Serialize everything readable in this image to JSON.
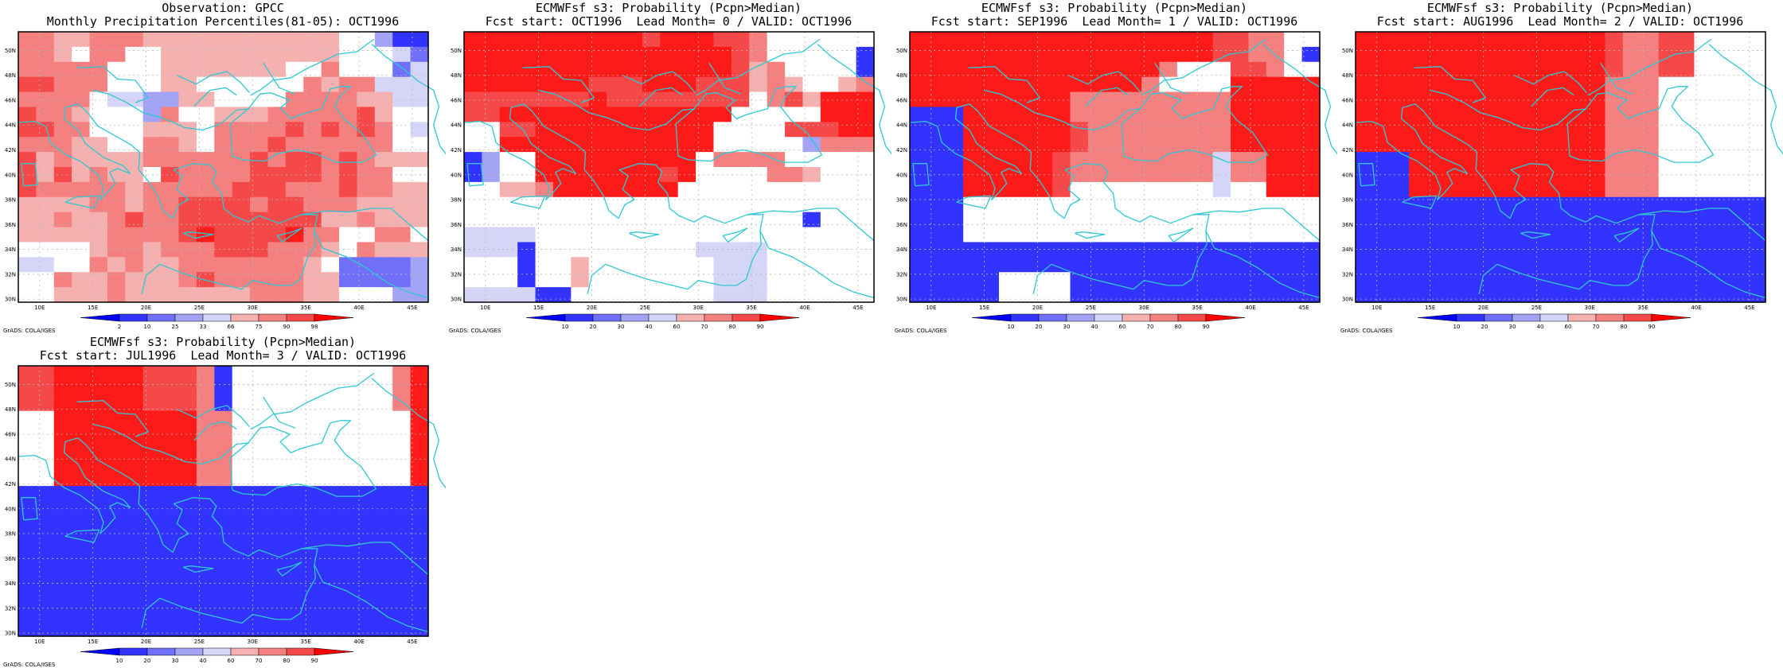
{
  "map": {
    "lat_labels": [
      "50N",
      "48N",
      "46N",
      "44N",
      "42N",
      "40N",
      "38N",
      "36N",
      "34N",
      "32N",
      "30N"
    ],
    "lon_labels": [
      "10E",
      "15E",
      "20E",
      "25E",
      "30E",
      "35E",
      "40E",
      "45E"
    ]
  },
  "colors": {
    "coast": "#2ec8d2",
    "frame": "#000000",
    "grid": "#b8b8b8",
    "levels": [
      "#0000ff",
      "#3333ff",
      "#6f6ff8",
      "#a3a3f5",
      "#d5d5f8",
      "#ffffff",
      "#f5b0b0",
      "#f58080",
      "#f54848",
      "#ff1a1a",
      "#ff0000"
    ]
  },
  "footer": "GrADS: COLA/IGES",
  "panels": [
    {
      "title1": "Observation: GPCC",
      "title2": "Monthly Precipitation Percentiles(81-05): OCT1996",
      "colorbar_labels": [
        "2",
        "10",
        "25",
        "33",
        "66",
        "75",
        "90",
        "98"
      ],
      "grid": [
        "77667776666666666655311",
        "77657755666666666655542",
        "77777555666666655755524",
        "88777555665555557677444",
        "77775443366555577776644",
        "87765553755666777778655",
        "88775556665777787878754",
        "77766557765777877777755",
        "86766667777778788787666",
        "86867665877778888787755",
        "87777767777788877787766",
        "66667767788887887776666",
        "66766787788888888667666",
        "66666777789888897755775",
        "55556776777888777657666",
        "44557676677777776522223",
        "55766766678777776622223",
        "55666766666667776655533"
      ]
    },
    {
      "title1": "ECMWFsf s3: Probability (Pcpn>Median)",
      "title2": "Fcst start: OCT1996  Lead Month= 0 / VALID: OCT1996",
      "colorbar_labels": [
        "10",
        "20",
        "30",
        "40",
        "60",
        "70",
        "80",
        "90"
      ],
      "grid": [
        "99999999998999887555555",
        "99999999999999987555551",
        "99999999999999986755551",
        "99999998889998886765567",
        "88888889888888885786999",
        "88999999999999955555999",
        "55889999999999555588899",
        "55999999999999555553777",
        "13559999999995777755555",
        "13559999999895555776555",
        "55667999999955555555555",
        "55555555555555555555555",
        "55555555555555555551555",
        "44445555555555555555555",
        "44415555555554444555555",
        "55515565555555444555555",
        "55515565555555444555555",
        "44441155555555444555555"
      ]
    },
    {
      "title1": "ECMWFsf s3: Probability (Pcpn>Median)",
      "title2": "Fcst start: SEP1996  Lead Month= 1 / VALID: OCT1996",
      "colorbar_labels": [
        "10",
        "20",
        "30",
        "40",
        "60",
        "70",
        "80",
        "90"
      ],
      "grid": [
        "99999999999999999887755",
        "99999999999999999887751",
        "99999999999999755588755",
        "99999999999997555599999",
        "99999999977777777799999",
        "11199999977777777799999",
        "11199999987777777799999",
        "11199999987777777799999",
        "11199999877777777477999",
        "11199999877777777477999",
        "11199999855555555455999",
        "11155555555555555555555",
        "11155555555555555555555",
        "11155555555555555555555",
        "11111111111111111111111",
        "11111111111111111111111",
        "11111555511111111111111",
        "11111555511111111111111"
      ]
    },
    {
      "title1": "ECMWFsf s3: Probability (Pcpn>Median)",
      "title2": "Fcst start: AUG1996  Lead Month= 2 / VALID: OCT1996",
      "colorbar_labels": [
        "10",
        "20",
        "30",
        "40",
        "60",
        "70",
        "80",
        "90"
      ],
      "grid": [
        "99999999999999877885555",
        "99999999999999877885555",
        "99999999999999877885555",
        "99999999999999777555555",
        "99999999999999777555555",
        "99999999999999777555555",
        "99999999999999777555555",
        "99999999999999777555555",
        "11199999999999777555555",
        "11199999999999777555555",
        "11199999999999777555555",
        "11111111111111111111111",
        "11111111111111111111111",
        "11111111111111111111111",
        "11111111111111111111111",
        "11111111111111111111111",
        "11111111111111111111111",
        "11111111111111111111111"
      ]
    },
    {
      "title1": "ECMWFsf s3: Probability (Pcpn>Median)",
      "title2": "Fcst start: JUL1996  Lead Month= 3 / VALID: OCT1996",
      "colorbar_labels": [
        "10",
        "20",
        "30",
        "40",
        "60",
        "70",
        "80",
        "90"
      ],
      "grid": [
        "88999998887155555555579",
        "88999998887155555555579",
        "88999998887155555555579",
        "55999999997755555555559",
        "55999999997755555555559",
        "55999999997755555555559",
        "55999999997755555555559",
        "55999999997755555555559",
        "11111111111111111111111",
        "11111111111111111111111",
        "11111111111111111111111",
        "11111111111111111111111",
        "11111111111111111111111",
        "11111111111111111111111",
        "11111111111111111111111",
        "11111111111111111111111",
        "11111111111111111111111",
        "11111111111111111111111"
      ]
    }
  ]
}
